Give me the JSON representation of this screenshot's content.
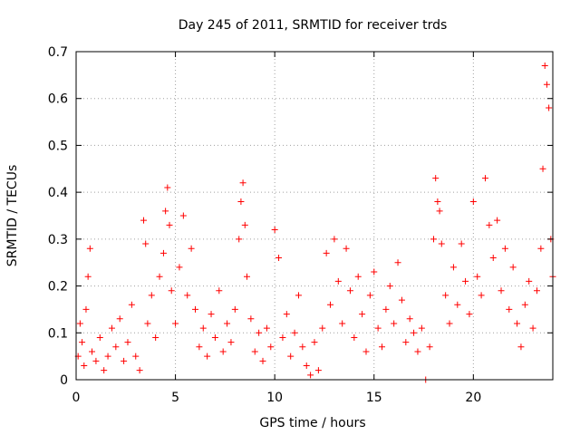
{
  "chart_data": {
    "type": "scatter",
    "title": "Day 245 of 2011, SRMTID for receiver trds",
    "xlabel": "GPS time / hours",
    "ylabel": "SRMTID / TECUs",
    "xlim": [
      0,
      24
    ],
    "ylim": [
      0,
      0.7
    ],
    "xticks": [
      0,
      5,
      10,
      15,
      20
    ],
    "xtick_labels": [
      "0",
      "5",
      "10",
      "15",
      "20"
    ],
    "yticks": [
      0,
      0.1,
      0.2,
      0.3,
      0.4,
      0.5,
      0.6,
      0.7
    ],
    "ytick_labels": [
      "0",
      "0.1",
      "0.2",
      "0.3",
      "0.4",
      "0.5",
      "0.6",
      "0.7"
    ],
    "grid": true,
    "marker": "+",
    "marker_color": "#ff0000",
    "series": [
      {
        "name": "SRMTID",
        "points": [
          [
            0.1,
            0.05
          ],
          [
            0.2,
            0.12
          ],
          [
            0.3,
            0.08
          ],
          [
            0.4,
            0.03
          ],
          [
            0.5,
            0.15
          ],
          [
            0.6,
            0.22
          ],
          [
            0.7,
            0.28
          ],
          [
            0.8,
            0.06
          ],
          [
            1.0,
            0.04
          ],
          [
            1.2,
            0.09
          ],
          [
            1.4,
            0.02
          ],
          [
            1.6,
            0.05
          ],
          [
            1.8,
            0.11
          ],
          [
            2.0,
            0.07
          ],
          [
            2.2,
            0.13
          ],
          [
            2.4,
            0.04
          ],
          [
            2.6,
            0.08
          ],
          [
            2.8,
            0.16
          ],
          [
            3.0,
            0.05
          ],
          [
            3.2,
            0.02
          ],
          [
            3.4,
            0.34
          ],
          [
            3.5,
            0.29
          ],
          [
            3.6,
            0.12
          ],
          [
            3.8,
            0.18
          ],
          [
            4.0,
            0.09
          ],
          [
            4.2,
            0.22
          ],
          [
            4.4,
            0.27
          ],
          [
            4.5,
            0.36
          ],
          [
            4.6,
            0.41
          ],
          [
            4.7,
            0.33
          ],
          [
            4.8,
            0.19
          ],
          [
            5.0,
            0.12
          ],
          [
            5.2,
            0.24
          ],
          [
            5.4,
            0.35
          ],
          [
            5.6,
            0.18
          ],
          [
            5.8,
            0.28
          ],
          [
            6.0,
            0.15
          ],
          [
            6.2,
            0.07
          ],
          [
            6.4,
            0.11
          ],
          [
            6.6,
            0.05
          ],
          [
            6.8,
            0.14
          ],
          [
            7.0,
            0.09
          ],
          [
            7.2,
            0.19
          ],
          [
            7.4,
            0.06
          ],
          [
            7.6,
            0.12
          ],
          [
            7.8,
            0.08
          ],
          [
            8.0,
            0.15
          ],
          [
            8.2,
            0.3
          ],
          [
            8.3,
            0.38
          ],
          [
            8.4,
            0.42
          ],
          [
            8.5,
            0.33
          ],
          [
            8.6,
            0.22
          ],
          [
            8.8,
            0.13
          ],
          [
            9.0,
            0.06
          ],
          [
            9.2,
            0.1
          ],
          [
            9.4,
            0.04
          ],
          [
            9.6,
            0.11
          ],
          [
            9.8,
            0.07
          ],
          [
            10.0,
            0.32
          ],
          [
            10.2,
            0.26
          ],
          [
            10.4,
            0.09
          ],
          [
            10.6,
            0.14
          ],
          [
            10.8,
            0.05
          ],
          [
            11.0,
            0.1
          ],
          [
            11.2,
            0.18
          ],
          [
            11.4,
            0.07
          ],
          [
            11.6,
            0.03
          ],
          [
            11.8,
            0.01
          ],
          [
            12.0,
            0.08
          ],
          [
            12.2,
            0.02
          ],
          [
            12.4,
            0.11
          ],
          [
            12.6,
            0.27
          ],
          [
            12.8,
            0.16
          ],
          [
            13.0,
            0.3
          ],
          [
            13.2,
            0.21
          ],
          [
            13.4,
            0.12
          ],
          [
            13.6,
            0.28
          ],
          [
            13.8,
            0.19
          ],
          [
            14.0,
            0.09
          ],
          [
            14.2,
            0.22
          ],
          [
            14.4,
            0.14
          ],
          [
            14.6,
            0.06
          ],
          [
            14.8,
            0.18
          ],
          [
            15.0,
            0.23
          ],
          [
            15.2,
            0.11
          ],
          [
            15.4,
            0.07
          ],
          [
            15.6,
            0.15
          ],
          [
            15.8,
            0.2
          ],
          [
            16.0,
            0.12
          ],
          [
            16.2,
            0.25
          ],
          [
            16.4,
            0.17
          ],
          [
            16.6,
            0.08
          ],
          [
            16.8,
            0.13
          ],
          [
            17.0,
            0.1
          ],
          [
            17.2,
            0.06
          ],
          [
            17.4,
            0.11
          ],
          [
            17.6,
            0.0
          ],
          [
            17.8,
            0.07
          ],
          [
            18.0,
            0.3
          ],
          [
            18.1,
            0.43
          ],
          [
            18.2,
            0.38
          ],
          [
            18.3,
            0.36
          ],
          [
            18.4,
            0.29
          ],
          [
            18.6,
            0.18
          ],
          [
            18.8,
            0.12
          ],
          [
            19.0,
            0.24
          ],
          [
            19.2,
            0.16
          ],
          [
            19.4,
            0.29
          ],
          [
            19.6,
            0.21
          ],
          [
            19.8,
            0.14
          ],
          [
            20.0,
            0.38
          ],
          [
            20.2,
            0.22
          ],
          [
            20.4,
            0.18
          ],
          [
            20.6,
            0.43
          ],
          [
            20.8,
            0.33
          ],
          [
            21.0,
            0.26
          ],
          [
            21.2,
            0.34
          ],
          [
            21.4,
            0.19
          ],
          [
            21.6,
            0.28
          ],
          [
            21.8,
            0.15
          ],
          [
            22.0,
            0.24
          ],
          [
            22.2,
            0.12
          ],
          [
            22.4,
            0.07
          ],
          [
            22.6,
            0.16
          ],
          [
            22.8,
            0.21
          ],
          [
            23.0,
            0.11
          ],
          [
            23.2,
            0.19
          ],
          [
            23.4,
            0.28
          ],
          [
            23.5,
            0.45
          ],
          [
            23.6,
            0.67
          ],
          [
            23.7,
            0.63
          ],
          [
            23.8,
            0.58
          ],
          [
            23.9,
            0.3
          ],
          [
            24.0,
            0.22
          ]
        ]
      }
    ]
  }
}
